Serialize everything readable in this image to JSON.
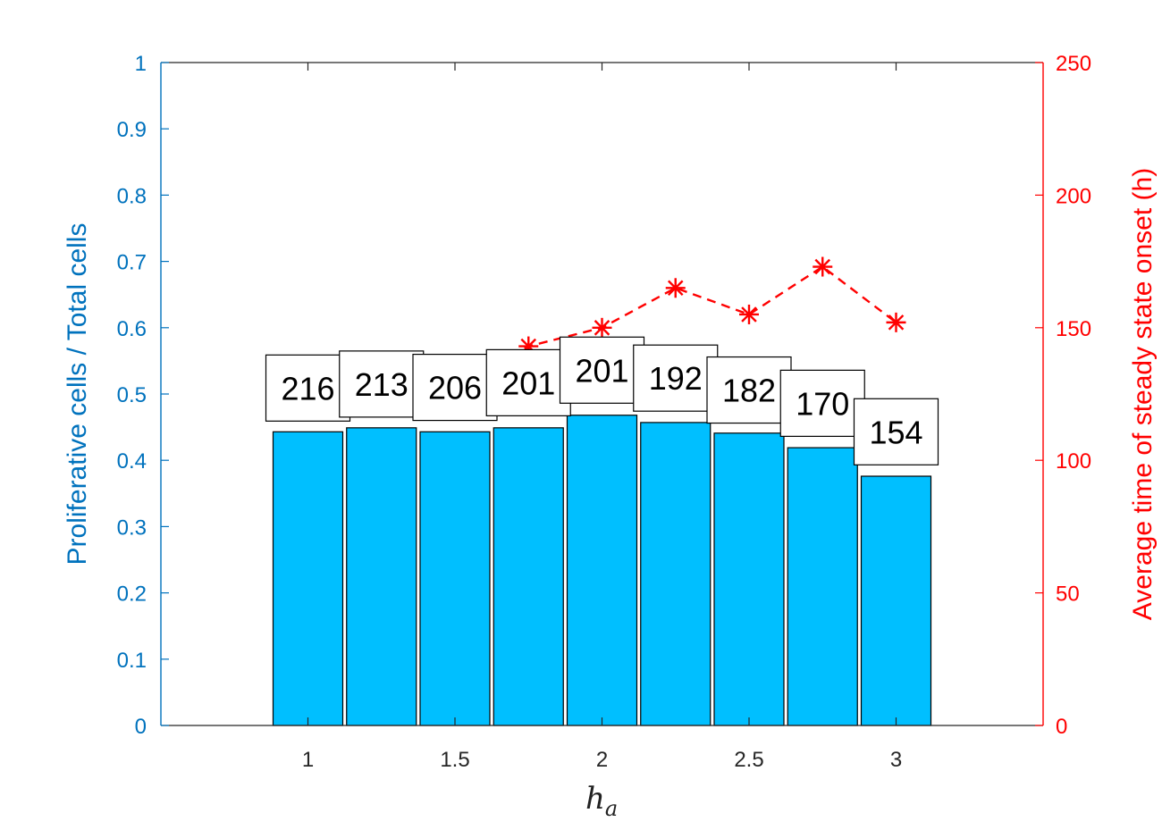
{
  "chart_data": {
    "type": "bar",
    "x": [
      1,
      1.25,
      1.5,
      1.75,
      2,
      2.25,
      2.5,
      2.75,
      3
    ],
    "xlabel_main": "h",
    "xlabel_sub": "a",
    "xlim": [
      0.5,
      3.5
    ],
    "xticks": [
      1,
      1.5,
      2,
      2.5,
      3
    ],
    "xtick_labels": [
      "1",
      "1.5",
      "2",
      "2.5",
      "3"
    ],
    "left_axis": {
      "label": "Proliferative cells / Total cells",
      "ylim": [
        0,
        1
      ],
      "ticks": [
        0,
        0.1,
        0.2,
        0.3,
        0.4,
        0.5,
        0.6,
        0.7,
        0.8,
        0.9,
        1
      ],
      "tick_labels": [
        "0",
        "0.1",
        "0.2",
        "0.3",
        "0.4",
        "0.5",
        "0.6",
        "0.7",
        "0.8",
        "0.9",
        "1"
      ],
      "color": "#0072BD"
    },
    "right_axis": {
      "label": "Average time of steady state onset (h)",
      "ylim": [
        0,
        250
      ],
      "ticks": [
        0,
        50,
        100,
        150,
        200,
        250
      ],
      "tick_labels": [
        "0",
        "50",
        "100",
        "150",
        "200",
        "250"
      ],
      "color": "#FF0000"
    },
    "bars": {
      "axis": "left",
      "values": [
        0.443,
        0.449,
        0.443,
        0.449,
        0.468,
        0.457,
        0.441,
        0.419,
        0.376
      ],
      "color": "#00BFFF",
      "edge_color": "#000000"
    },
    "line": {
      "axis": "right",
      "values": [
        120,
        121,
        129,
        143,
        150,
        165,
        155,
        173,
        152
      ],
      "style": "dashed",
      "marker": "asterisk",
      "color": "#FF0000"
    },
    "count_labels": [
      {
        "text": "216",
        "y": 0.509
      },
      {
        "text": "213",
        "y": 0.515
      },
      {
        "text": "206",
        "y": 0.51
      },
      {
        "text": "201",
        "y": 0.517
      },
      {
        "text": "201",
        "y": 0.536
      },
      {
        "text": "192",
        "y": 0.524
      },
      {
        "text": "182",
        "y": 0.506
      },
      {
        "text": "170",
        "y": 0.486
      },
      {
        "text": "154",
        "y": 0.443
      }
    ],
    "grid": false
  }
}
